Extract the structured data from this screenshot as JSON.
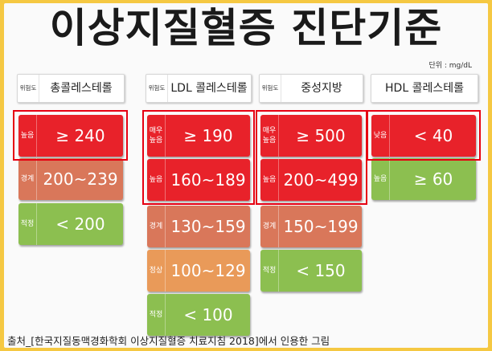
{
  "title": "이상지질혈증 진단기준",
  "unit": "단위 : mg/dL",
  "risk_label": "위험도",
  "columns": {
    "tc": {
      "name": "총콜레스테롤",
      "rows": [
        {
          "level": "높음",
          "value": "≥ 240",
          "color": "#e8222a"
        },
        {
          "level": "경계",
          "value": "200~239",
          "color": "#d9775a"
        },
        {
          "level": "적정",
          "value": "< 200",
          "color": "#8cbf50"
        }
      ]
    },
    "ldl": {
      "name": "LDL 콜레스테롤",
      "rows": [
        {
          "level": "매우\n높음",
          "value": "≥ 190",
          "color": "#e8222a"
        },
        {
          "level": "높음",
          "value": "160~189",
          "color": "#e8222a"
        },
        {
          "level": "경계",
          "value": "130~159",
          "color": "#d9775a"
        },
        {
          "level": "정상",
          "value": "100~129",
          "color": "#e99a59"
        },
        {
          "level": "적정",
          "value": "< 100",
          "color": "#8cbf50"
        }
      ]
    },
    "tg": {
      "name": "중성지방",
      "rows": [
        {
          "level": "매우\n높음",
          "value": "≥ 500",
          "color": "#e8222a"
        },
        {
          "level": "높음",
          "value": "200~499",
          "color": "#e8222a"
        },
        {
          "level": "경계",
          "value": "150~199",
          "color": "#d9775a"
        },
        {
          "level": "적정",
          "value": "< 150",
          "color": "#8cbf50"
        }
      ]
    },
    "hdl": {
      "name": "HDL 콜레스테롤",
      "rows": [
        {
          "level": "낮음",
          "value": "< 40",
          "color": "#e8222a"
        },
        {
          "level": "높음",
          "value": "≥ 60",
          "color": "#8cbf50"
        }
      ]
    }
  },
  "source": "출처_[한국지질동맥경화학회 이상지질혈증 치료지침 2018]에서 인용한 그림",
  "colors": {
    "frame": "#f5c842",
    "highlight_border": "#e60012"
  }
}
